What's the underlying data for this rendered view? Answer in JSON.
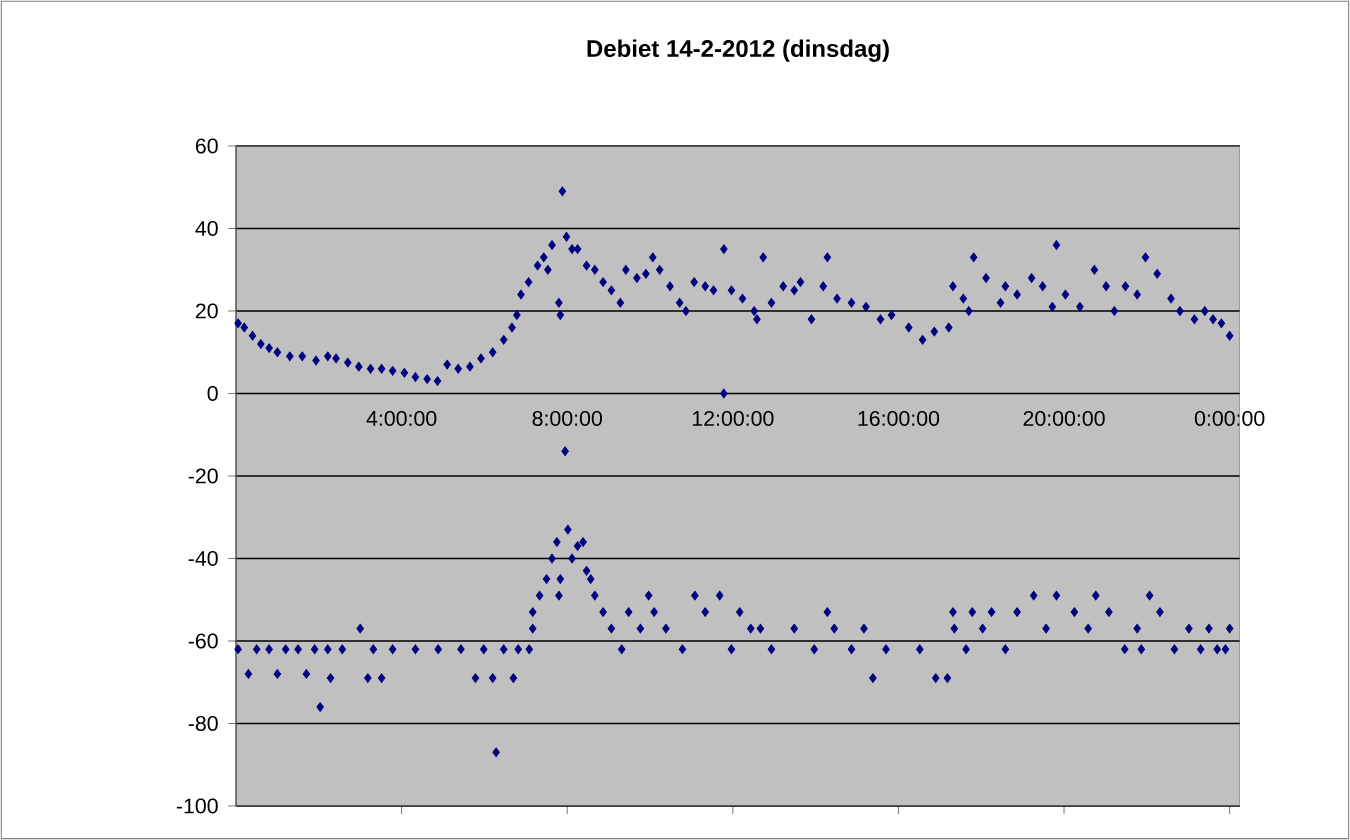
{
  "chart_data": {
    "type": "scatter",
    "title": "Debiet 14-2-2012 (dinsdag)",
    "marker": "diamond",
    "grid": "y",
    "xlim": [
      "2012-02-14T00:00",
      "2012-02-15T00:15"
    ],
    "ylim": [
      -100,
      60
    ],
    "xticks": [
      {
        "value": "2012-02-14T04:00",
        "label": "4:00:00"
      },
      {
        "value": "2012-02-14T08:00",
        "label": "8:00:00"
      },
      {
        "value": "2012-02-14T12:00",
        "label": "12:00:00"
      },
      {
        "value": "2012-02-14T16:00",
        "label": "16:00:00"
      },
      {
        "value": "2012-02-14T20:00",
        "label": "20:00:00"
      },
      {
        "value": "2012-02-15T00:00",
        "label": "0:00:00"
      }
    ],
    "yticks": [
      {
        "value": -100,
        "label": "-100"
      },
      {
        "value": -80,
        "label": "-80"
      },
      {
        "value": -60,
        "label": "-60"
      },
      {
        "value": -40,
        "label": "-40"
      },
      {
        "value": -20,
        "label": "-20"
      },
      {
        "value": 0,
        "label": "0"
      },
      {
        "value": 20,
        "label": "20"
      },
      {
        "value": 40,
        "label": "40"
      },
      {
        "value": 60,
        "label": "60"
      }
    ],
    "series": [
      {
        "color": "#000080",
        "x": [
          "2012-02-14T00:03",
          "2012-02-14T00:12",
          "2012-02-14T00:24",
          "2012-02-14T00:36",
          "2012-02-14T00:48",
          "2012-02-14T01:00",
          "2012-02-14T01:18",
          "2012-02-14T01:36",
          "2012-02-14T01:56",
          "2012-02-14T02:13",
          "2012-02-14T02:25",
          "2012-02-14T02:42",
          "2012-02-14T02:58",
          "2012-02-14T03:15",
          "2012-02-14T03:31",
          "2012-02-14T03:47",
          "2012-02-14T04:04",
          "2012-02-14T04:20",
          "2012-02-14T04:37",
          "2012-02-14T04:52",
          "2012-02-14T05:06",
          "2012-02-14T05:22",
          "2012-02-14T05:39",
          "2012-02-14T05:55",
          "2012-02-14T06:12",
          "2012-02-14T06:28",
          "2012-02-14T06:40",
          "2012-02-14T06:47",
          "2012-02-14T06:53",
          "2012-02-14T07:04",
          "2012-02-14T07:17",
          "2012-02-14T07:26",
          "2012-02-14T07:32",
          "2012-02-14T07:38",
          "2012-02-14T07:48",
          "2012-02-14T07:50",
          "2012-02-14T07:53",
          "2012-02-14T07:59",
          "2012-02-14T08:07",
          "2012-02-14T08:15",
          "2012-02-14T08:28",
          "2012-02-14T08:40",
          "2012-02-14T08:52",
          "2012-02-14T09:04",
          "2012-02-14T09:17",
          "2012-02-14T09:25",
          "2012-02-14T09:41",
          "2012-02-14T09:54",
          "2012-02-14T10:04",
          "2012-02-14T10:14",
          "2012-02-14T10:29",
          "2012-02-14T10:43",
          "2012-02-14T10:52",
          "2012-02-14T11:04",
          "2012-02-14T11:20",
          "2012-02-14T11:32",
          "2012-02-14T11:47",
          "2012-02-14T11:47",
          "2012-02-14T11:58",
          "2012-02-14T12:14",
          "2012-02-14T12:31",
          "2012-02-14T12:35",
          "2012-02-14T12:44",
          "2012-02-14T12:56",
          "2012-02-14T13:13",
          "2012-02-14T13:29",
          "2012-02-14T13:38",
          "2012-02-14T13:54",
          "2012-02-14T14:11",
          "2012-02-14T14:17",
          "2012-02-14T14:31",
          "2012-02-14T14:52",
          "2012-02-14T15:13",
          "2012-02-14T15:34",
          "2012-02-14T15:50",
          "2012-02-14T16:15",
          "2012-02-14T16:35",
          "2012-02-14T16:52",
          "2012-02-14T17:13",
          "2012-02-14T17:19",
          "2012-02-14T17:34",
          "2012-02-14T17:42",
          "2012-02-14T17:49",
          "2012-02-14T18:07",
          "2012-02-14T18:28",
          "2012-02-14T18:35",
          "2012-02-14T18:52",
          "2012-02-14T19:13",
          "2012-02-14T19:29",
          "2012-02-14T19:43",
          "2012-02-14T19:49",
          "2012-02-14T20:02",
          "2012-02-14T20:23",
          "2012-02-14T20:44",
          "2012-02-14T21:01",
          "2012-02-14T21:13",
          "2012-02-14T21:29",
          "2012-02-14T21:46",
          "2012-02-14T21:58",
          "2012-02-14T22:15",
          "2012-02-14T22:35",
          "2012-02-14T22:48",
          "2012-02-14T23:09",
          "2012-02-14T23:24",
          "2012-02-14T23:36",
          "2012-02-14T23:48",
          "2012-02-15T00:00"
        ],
        "values": [
          17,
          16,
          14,
          12,
          11,
          10,
          9,
          9,
          8,
          9,
          8.5,
          7.5,
          6.5,
          6,
          6,
          5.5,
          5,
          4,
          3.5,
          3,
          7,
          6,
          6.5,
          8.5,
          10,
          13,
          16,
          19,
          24,
          27,
          31,
          33,
          30,
          36,
          22,
          19,
          49,
          38,
          35,
          35,
          31,
          30,
          27,
          25,
          22,
          30,
          28,
          29,
          33,
          30,
          26,
          22,
          20,
          27,
          26,
          25,
          35,
          0,
          25,
          23,
          20,
          18,
          33,
          22,
          26,
          25,
          27,
          18,
          26,
          33,
          23,
          22,
          21,
          18,
          19,
          16,
          13,
          15,
          16,
          26,
          23,
          20,
          33,
          28,
          22,
          26,
          24,
          28,
          26,
          21,
          36,
          24,
          21,
          30,
          26,
          20,
          26,
          24,
          33,
          29,
          23,
          20,
          18,
          20,
          18,
          17,
          14
        ]
      },
      {
        "color": "#000080",
        "x": [
          "2012-02-14T00:03",
          "2012-02-14T00:18",
          "2012-02-14T00:30",
          "2012-02-14T00:48",
          "2012-02-14T01:00",
          "2012-02-14T01:12",
          "2012-02-14T01:30",
          "2012-02-14T01:42",
          "2012-02-14T01:54",
          "2012-02-14T02:02",
          "2012-02-14T02:13",
          "2012-02-14T02:17",
          "2012-02-14T02:34",
          "2012-02-14T03:00",
          "2012-02-14T03:11",
          "2012-02-14T03:19",
          "2012-02-14T03:31",
          "2012-02-14T03:47",
          "2012-02-14T04:20",
          "2012-02-14T04:53",
          "2012-02-14T05:26",
          "2012-02-14T05:47",
          "2012-02-14T05:59",
          "2012-02-14T06:12",
          "2012-02-14T06:17",
          "2012-02-14T06:28",
          "2012-02-14T06:42",
          "2012-02-14T06:49",
          "2012-02-14T07:05",
          "2012-02-14T07:10",
          "2012-02-14T07:10",
          "2012-02-14T07:20",
          "2012-02-14T07:30",
          "2012-02-14T07:38",
          "2012-02-14T07:45",
          "2012-02-14T07:48",
          "2012-02-14T07:50",
          "2012-02-14T07:57",
          "2012-02-14T08:01",
          "2012-02-14T08:07",
          "2012-02-14T08:15",
          "2012-02-14T08:23",
          "2012-02-14T08:28",
          "2012-02-14T08:34",
          "2012-02-14T08:40",
          "2012-02-14T08:52",
          "2012-02-14T09:04",
          "2012-02-14T09:19",
          "2012-02-14T09:29",
          "2012-02-14T09:46",
          "2012-02-14T09:58",
          "2012-02-14T10:06",
          "2012-02-14T10:23",
          "2012-02-14T10:47",
          "2012-02-14T11:05",
          "2012-02-14T11:20",
          "2012-02-14T11:41",
          "2012-02-14T11:58",
          "2012-02-14T12:10",
          "2012-02-14T12:26",
          "2012-02-14T12:40",
          "2012-02-14T12:56",
          "2012-02-14T13:29",
          "2012-02-14T13:58",
          "2012-02-14T14:17",
          "2012-02-14T14:27",
          "2012-02-14T14:52",
          "2012-02-14T15:10",
          "2012-02-14T15:23",
          "2012-02-14T15:42",
          "2012-02-14T16:31",
          "2012-02-14T16:54",
          "2012-02-14T17:11",
          "2012-02-14T17:19",
          "2012-02-14T17:21",
          "2012-02-14T17:38",
          "2012-02-14T17:47",
          "2012-02-14T18:02",
          "2012-02-14T18:15",
          "2012-02-14T18:35",
          "2012-02-14T18:52",
          "2012-02-14T19:16",
          "2012-02-14T19:34",
          "2012-02-14T19:49",
          "2012-02-14T20:15",
          "2012-02-14T20:35",
          "2012-02-14T20:46",
          "2012-02-14T21:05",
          "2012-02-14T21:28",
          "2012-02-14T21:46",
          "2012-02-14T21:52",
          "2012-02-14T22:04",
          "2012-02-14T22:19",
          "2012-02-14T22:40",
          "2012-02-14T23:01",
          "2012-02-14T23:18",
          "2012-02-14T23:30",
          "2012-02-14T23:42",
          "2012-02-14T23:54",
          "2012-02-15T00:00"
        ],
        "values": [
          -62,
          -68,
          -62,
          -62,
          -68,
          -62,
          -62,
          -68,
          -62,
          -76,
          -62,
          -69,
          -62,
          -57,
          -69,
          -62,
          -69,
          -62,
          -62,
          -62,
          -62,
          -69,
          -62,
          -69,
          -87,
          -62,
          -69,
          -62,
          -62,
          -57,
          -53,
          -49,
          -45,
          -40,
          -36,
          -49,
          -45,
          -14,
          -33,
          -40,
          -37,
          -36,
          -43,
          -45,
          -49,
          -53,
          -57,
          -62,
          -53,
          -57,
          -49,
          -53,
          -57,
          -62,
          -49,
          -53,
          -49,
          -62,
          -53,
          -57,
          -57,
          -62,
          -57,
          -62,
          -53,
          -57,
          -62,
          -57,
          -69,
          -62,
          -62,
          -69,
          -69,
          -53,
          -57,
          -62,
          -53,
          -57,
          -53,
          -62,
          -53,
          -49,
          -57,
          -49,
          -53,
          -57,
          -49,
          -53,
          -62,
          -57,
          -62,
          -49,
          -53,
          -62,
          -57,
          -62,
          -57,
          -62,
          -62,
          -57
        ]
      }
    ]
  }
}
